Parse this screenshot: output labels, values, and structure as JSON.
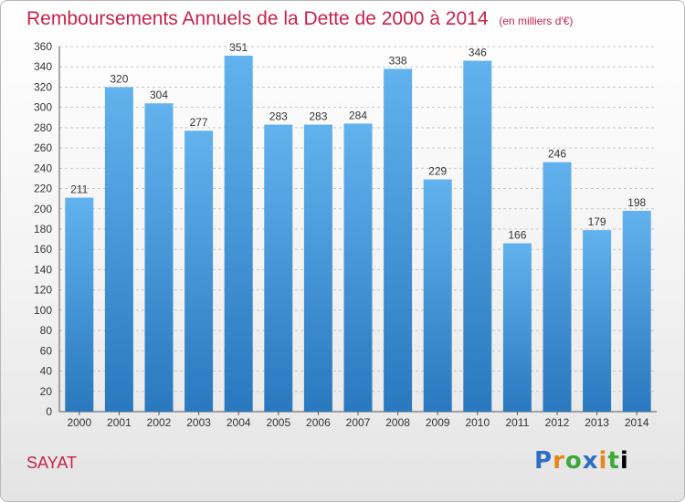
{
  "chart_data": {
    "type": "bar",
    "title": "Remboursements Annuels de la Dette de 2000 à 2014",
    "subtitle": "(en milliers d'€)",
    "categories": [
      "2000",
      "2001",
      "2002",
      "2003",
      "2004",
      "2005",
      "2006",
      "2007",
      "2008",
      "2009",
      "2010",
      "2011",
      "2012",
      "2013",
      "2014"
    ],
    "values": [
      211,
      320,
      304,
      277,
      351,
      283,
      283,
      284,
      338,
      229,
      346,
      166,
      246,
      179,
      198
    ],
    "ylim": [
      0,
      360
    ],
    "yticks": [
      0,
      20,
      40,
      60,
      80,
      100,
      120,
      140,
      160,
      180,
      200,
      220,
      240,
      260,
      280,
      300,
      320,
      340,
      360
    ],
    "grid": true,
    "bar_color": "#3f8fd8"
  },
  "footer": {
    "city": "SAYAT",
    "logo": "Proxiti"
  }
}
